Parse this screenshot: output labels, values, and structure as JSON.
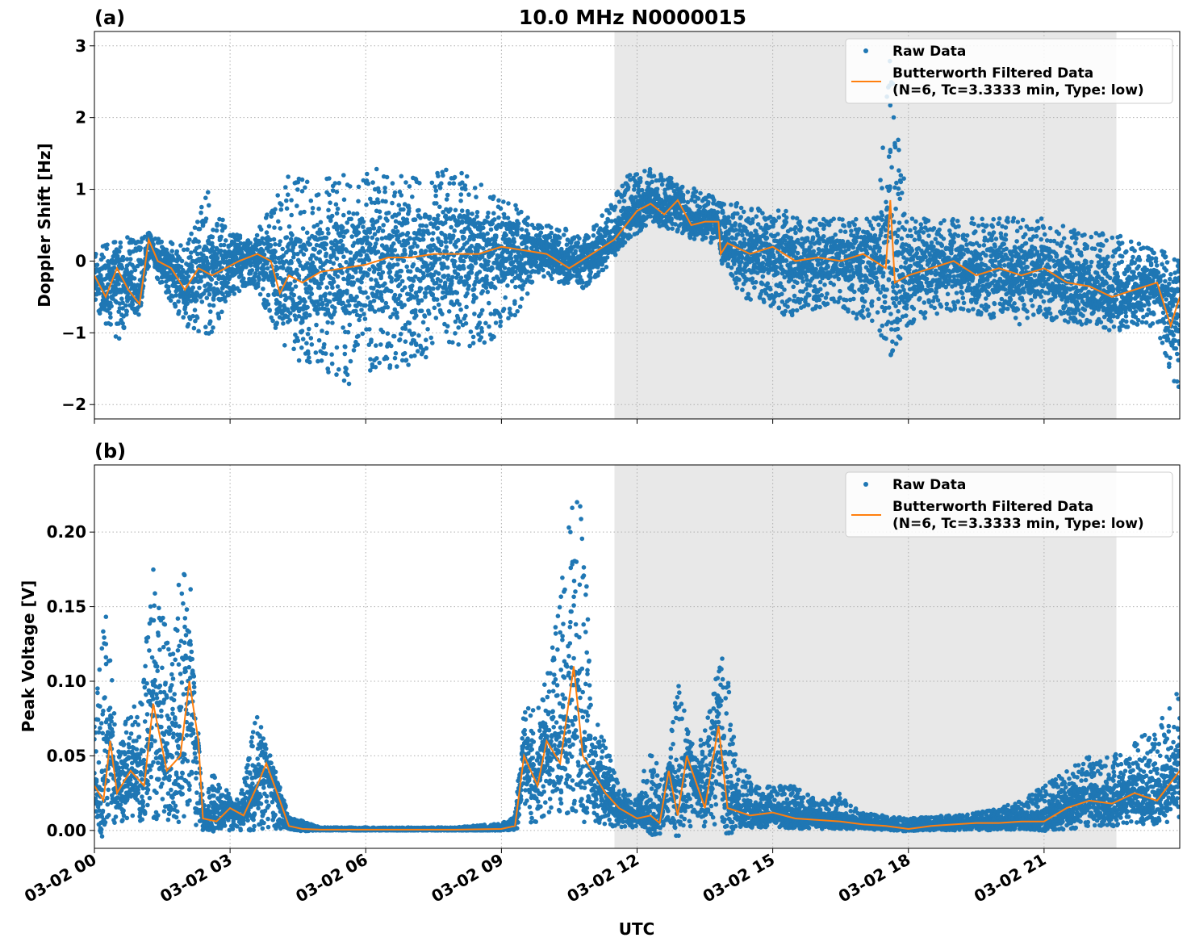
{
  "figure": {
    "title": "10.0 MHz N0000015",
    "xlabel": "UTC",
    "x_ticks": [
      "03-02 00",
      "03-02 03",
      "03-02 06",
      "03-02 09",
      "03-02 12",
      "03-02 15",
      "03-02 18",
      "03-02 21"
    ],
    "shaded_region_hours": [
      11.5,
      22.6
    ],
    "colors": {
      "raw": "#1f77b4",
      "filtered": "#ff7f0e",
      "shade": "#e8e8e8",
      "grid": "#b0b0b0"
    }
  },
  "legend": {
    "raw_label": "Raw Data",
    "filtered_label_line1": "Butterworth Filtered Data",
    "filtered_label_line2": "(N=6, Tc=3.3333 min, Type: low)"
  },
  "chart_data": [
    {
      "type": "scatter",
      "panel_label": "(a)",
      "title": "10.0 MHz N0000015",
      "ylabel": "Doppler Shift [Hz]",
      "xlabel": "",
      "x_unit": "hours UTC on 03-02",
      "xlim": [
        0,
        24
      ],
      "ylim": [
        -2.2,
        3.2
      ],
      "y_ticks": [
        "−2",
        "−1",
        "0",
        "1",
        "2",
        "3"
      ],
      "grid": true,
      "legend_position": "top-right",
      "series": [
        {
          "name": "Butterworth Filtered Data",
          "style": "line",
          "x": [
            0,
            0.25,
            0.5,
            0.75,
            1.0,
            1.2,
            1.4,
            1.7,
            2.0,
            2.3,
            2.6,
            2.9,
            3.2,
            3.6,
            3.9,
            4.1,
            4.3,
            4.6,
            5.0,
            5.5,
            6.0,
            6.5,
            7.0,
            7.5,
            8.0,
            8.5,
            9.0,
            9.5,
            10.0,
            10.5,
            11.0,
            11.5,
            12.0,
            12.3,
            12.6,
            12.9,
            13.2,
            13.5,
            13.8,
            13.85,
            14.0,
            14.5,
            15.0,
            15.5,
            16.0,
            16.5,
            17.0,
            17.5,
            17.6,
            17.7,
            18.0,
            18.5,
            19.0,
            19.5,
            20.0,
            20.5,
            21.0,
            21.5,
            22.0,
            22.5,
            23.0,
            23.5,
            23.8,
            24.0
          ],
          "y": [
            -0.2,
            -0.5,
            -0.1,
            -0.4,
            -0.6,
            0.3,
            0.0,
            -0.1,
            -0.4,
            -0.1,
            -0.2,
            -0.1,
            0.0,
            0.1,
            0.0,
            -0.45,
            -0.2,
            -0.3,
            -0.15,
            -0.1,
            -0.05,
            0.05,
            0.05,
            0.1,
            0.1,
            0.1,
            0.2,
            0.15,
            0.1,
            -0.1,
            0.1,
            0.3,
            0.7,
            0.8,
            0.65,
            0.85,
            0.5,
            0.55,
            0.55,
            0.1,
            0.25,
            0.1,
            0.2,
            0.0,
            0.05,
            0.0,
            0.1,
            -0.1,
            0.85,
            -0.3,
            -0.2,
            -0.1,
            0.0,
            -0.2,
            -0.1,
            -0.2,
            -0.1,
            -0.3,
            -0.35,
            -0.5,
            -0.4,
            -0.3,
            -0.9,
            -0.5
          ]
        },
        {
          "name": "Raw Data",
          "style": "points",
          "x": [
            0,
            0.5,
            1.2,
            2.0,
            2.5,
            3.0,
            3.5,
            4.3,
            4.8,
            5.3,
            5.8,
            6.3,
            6.8,
            7.3,
            7.8,
            8.3,
            8.8,
            9.3,
            9.8,
            10.3,
            10.8,
            11.3,
            11.8,
            12.3,
            12.8,
            13.3,
            13.8,
            14.3,
            14.8,
            15.3,
            15.8,
            16.3,
            16.8,
            17.3,
            17.6,
            18.0,
            18.5,
            19.0,
            19.5,
            20.0,
            20.5,
            21.0,
            21.5,
            22.0,
            22.5,
            23.0,
            23.5,
            24.0
          ],
          "y_min": [
            -0.6,
            -1.2,
            -0.1,
            -0.9,
            -1.1,
            -0.5,
            -0.3,
            -1.3,
            -1.5,
            -1.6,
            -1.8,
            -1.5,
            -1.5,
            -1.4,
            -1.2,
            -1.2,
            -1.1,
            -0.8,
            -0.2,
            -0.3,
            -0.4,
            -0.1,
            0.3,
            0.5,
            0.4,
            0.3,
            0.2,
            -0.5,
            -0.6,
            -0.8,
            -0.7,
            -0.6,
            -0.8,
            -0.9,
            -1.4,
            -0.9,
            -0.8,
            -0.7,
            -0.8,
            -0.8,
            -0.9,
            -0.8,
            -0.9,
            -0.9,
            -1.0,
            -0.9,
            -1.0,
            -1.9
          ],
          "y_max": [
            0.2,
            0.3,
            0.4,
            0.2,
            1.0,
            0.4,
            0.3,
            1.2,
            1.1,
            1.2,
            1.2,
            1.3,
            1.2,
            1.2,
            1.3,
            1.2,
            1.0,
            0.8,
            0.5,
            0.5,
            0.3,
            0.7,
            1.2,
            1.3,
            1.2,
            1.0,
            0.9,
            0.8,
            0.8,
            0.7,
            0.6,
            0.6,
            0.6,
            0.6,
            2.9,
            0.6,
            0.6,
            0.6,
            0.6,
            0.6,
            0.6,
            0.6,
            0.5,
            0.4,
            0.4,
            0.3,
            0.2,
            0.0
          ]
        }
      ]
    },
    {
      "type": "scatter",
      "panel_label": "(b)",
      "title": "",
      "ylabel": "Peak Voltage [V]",
      "xlabel": "UTC",
      "x_unit": "hours UTC on 03-02",
      "xlim": [
        0,
        24
      ],
      "ylim": [
        -0.012,
        0.245
      ],
      "y_ticks": [
        "0.00",
        "0.05",
        "0.10",
        "0.15",
        "0.20"
      ],
      "grid": true,
      "legend_position": "top-right",
      "series": [
        {
          "name": "Butterworth Filtered Data",
          "style": "line",
          "x": [
            0,
            0.2,
            0.35,
            0.5,
            0.8,
            1.1,
            1.3,
            1.6,
            1.9,
            2.1,
            2.3,
            2.4,
            2.7,
            3.0,
            3.3,
            3.6,
            3.8,
            4.1,
            4.3,
            4.6,
            5.0,
            6.0,
            7.0,
            8.0,
            9.0,
            9.3,
            9.5,
            9.8,
            10.0,
            10.3,
            10.6,
            10.8,
            11.0,
            11.3,
            11.6,
            12.0,
            12.3,
            12.5,
            12.7,
            12.9,
            13.1,
            13.5,
            13.8,
            14.0,
            14.5,
            15.0,
            15.5,
            16.0,
            16.5,
            17.0,
            17.5,
            18.0,
            18.5,
            19.0,
            19.5,
            20.0,
            20.5,
            21.0,
            21.5,
            22.0,
            22.5,
            23.0,
            23.5,
            24.0
          ],
          "y": [
            0.03,
            0.02,
            0.06,
            0.025,
            0.04,
            0.03,
            0.085,
            0.04,
            0.05,
            0.1,
            0.06,
            0.008,
            0.006,
            0.015,
            0.01,
            0.03,
            0.045,
            0.02,
            0.003,
            0.001,
            0.0005,
            0.0005,
            0.0005,
            0.0005,
            0.001,
            0.003,
            0.05,
            0.03,
            0.06,
            0.045,
            0.11,
            0.05,
            0.04,
            0.025,
            0.015,
            0.008,
            0.01,
            0.005,
            0.04,
            0.01,
            0.05,
            0.015,
            0.07,
            0.015,
            0.01,
            0.012,
            0.008,
            0.007,
            0.006,
            0.004,
            0.003,
            0.001,
            0.003,
            0.004,
            0.005,
            0.005,
            0.006,
            0.006,
            0.015,
            0.02,
            0.018,
            0.025,
            0.02,
            0.04
          ]
        },
        {
          "name": "Raw Data",
          "style": "points",
          "x": [
            0,
            0.25,
            0.5,
            0.8,
            1.1,
            1.3,
            1.6,
            1.9,
            2.1,
            2.3,
            2.6,
            2.9,
            3.2,
            3.6,
            3.9,
            4.3,
            5.0,
            6.0,
            7.0,
            8.0,
            9.0,
            9.3,
            9.5,
            9.8,
            10.1,
            10.4,
            10.6,
            10.8,
            11.0,
            11.3,
            11.6,
            12.0,
            12.3,
            12.6,
            12.9,
            13.3,
            13.6,
            13.9,
            14.2,
            14.6,
            15.0,
            15.5,
            16.0,
            16.5,
            17.0,
            17.5,
            18.0,
            18.5,
            19.0,
            19.5,
            20.0,
            20.5,
            21.0,
            21.5,
            22.0,
            22.5,
            23.0,
            23.5,
            24.0
          ],
          "y_min": [
            0.005,
            0.005,
            0.005,
            0.005,
            0.005,
            0.005,
            0.005,
            0.005,
            0.01,
            0.0,
            0.0,
            0.0,
            0.0,
            0.0,
            0.0,
            0.0,
            0.0,
            0.0,
            0.0,
            0.0,
            0.0,
            0.0,
            0.005,
            0.005,
            0.005,
            0.005,
            0.005,
            0.005,
            0.005,
            0.003,
            0.002,
            0.002,
            0.002,
            0.002,
            0.002,
            0.002,
            0.002,
            0.002,
            0.002,
            0.002,
            0.002,
            0.001,
            0.001,
            0.001,
            0.001,
            0.0,
            0.0,
            0.0,
            0.0,
            0.0,
            0.0,
            0.0,
            0.0,
            0.0,
            0.002,
            0.002,
            0.003,
            0.004,
            0.005
          ],
          "y_max": [
            0.075,
            0.155,
            0.06,
            0.08,
            0.11,
            0.19,
            0.13,
            0.17,
            0.19,
            0.02,
            0.04,
            0.03,
            0.02,
            0.08,
            0.05,
            0.01,
            0.002,
            0.002,
            0.002,
            0.002,
            0.005,
            0.01,
            0.09,
            0.08,
            0.12,
            0.18,
            0.235,
            0.22,
            0.09,
            0.06,
            0.03,
            0.02,
            0.06,
            0.03,
            0.1,
            0.05,
            0.08,
            0.13,
            0.05,
            0.03,
            0.03,
            0.03,
            0.02,
            0.025,
            0.012,
            0.01,
            0.008,
            0.01,
            0.01,
            0.012,
            0.015,
            0.02,
            0.03,
            0.04,
            0.05,
            0.05,
            0.06,
            0.07,
            0.095
          ]
        }
      ]
    }
  ]
}
